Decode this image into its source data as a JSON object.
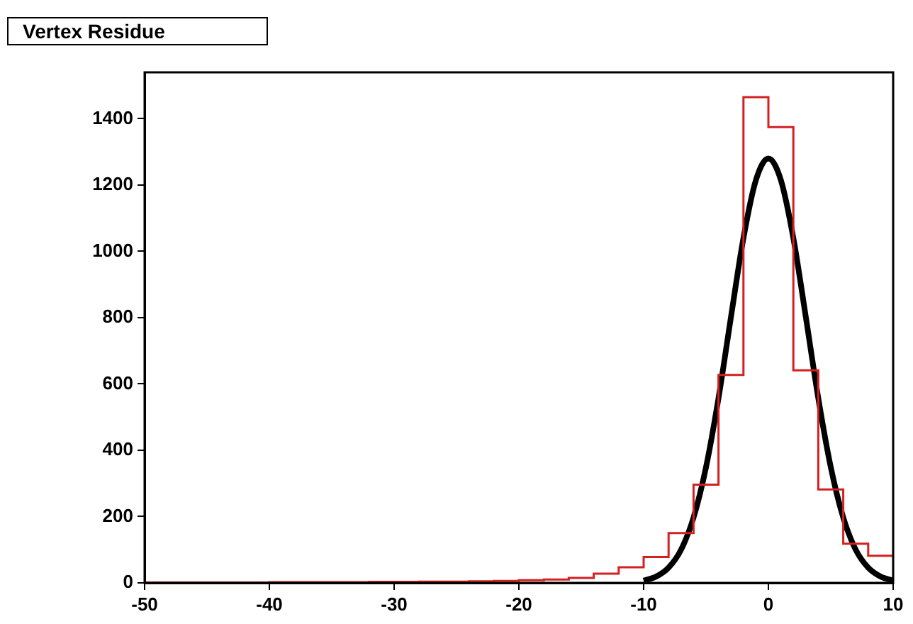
{
  "chart_data": {
    "type": "histogram",
    "title": "Vertex Residue",
    "xlim": [
      -50,
      10
    ],
    "xticks": [
      -50,
      -40,
      -30,
      -20,
      -10,
      0,
      10
    ],
    "ylim": [
      0,
      1540
    ],
    "yticks": [
      0,
      200,
      400,
      600,
      800,
      1000,
      1200,
      1400
    ],
    "series": [
      {
        "type": "histogram",
        "color": "#d42020",
        "bins": [
          -50,
          -48,
          -46,
          -44,
          -42,
          -40,
          -38,
          -36,
          -34,
          -32,
          -30,
          -28,
          -26,
          -24,
          -22,
          -20,
          -18,
          -16,
          -14,
          -12,
          -10,
          -8,
          -6,
          -4,
          -2,
          0,
          2,
          4,
          6,
          8,
          10
        ],
        "values": [
          1,
          1,
          1,
          1,
          1,
          2,
          2,
          2,
          2,
          3,
          3,
          4,
          4,
          5,
          6,
          8,
          10,
          15,
          28,
          47,
          78,
          150,
          296,
          627,
          1465,
          1375,
          641,
          282,
          118,
          82
        ]
      },
      {
        "type": "line",
        "color": "#000000",
        "x": [
          -10,
          -9,
          -8,
          -7,
          -6,
          -5,
          -4,
          -3,
          -2,
          -1,
          0,
          1,
          2,
          3,
          4,
          5,
          6,
          7,
          8,
          9,
          10
        ],
        "values": [
          7,
          19,
          46,
          100,
          197,
          349,
          557,
          802,
          1040,
          1215,
          1280,
          1215,
          1040,
          802,
          557,
          349,
          197,
          100,
          46,
          19,
          7
        ]
      }
    ]
  }
}
